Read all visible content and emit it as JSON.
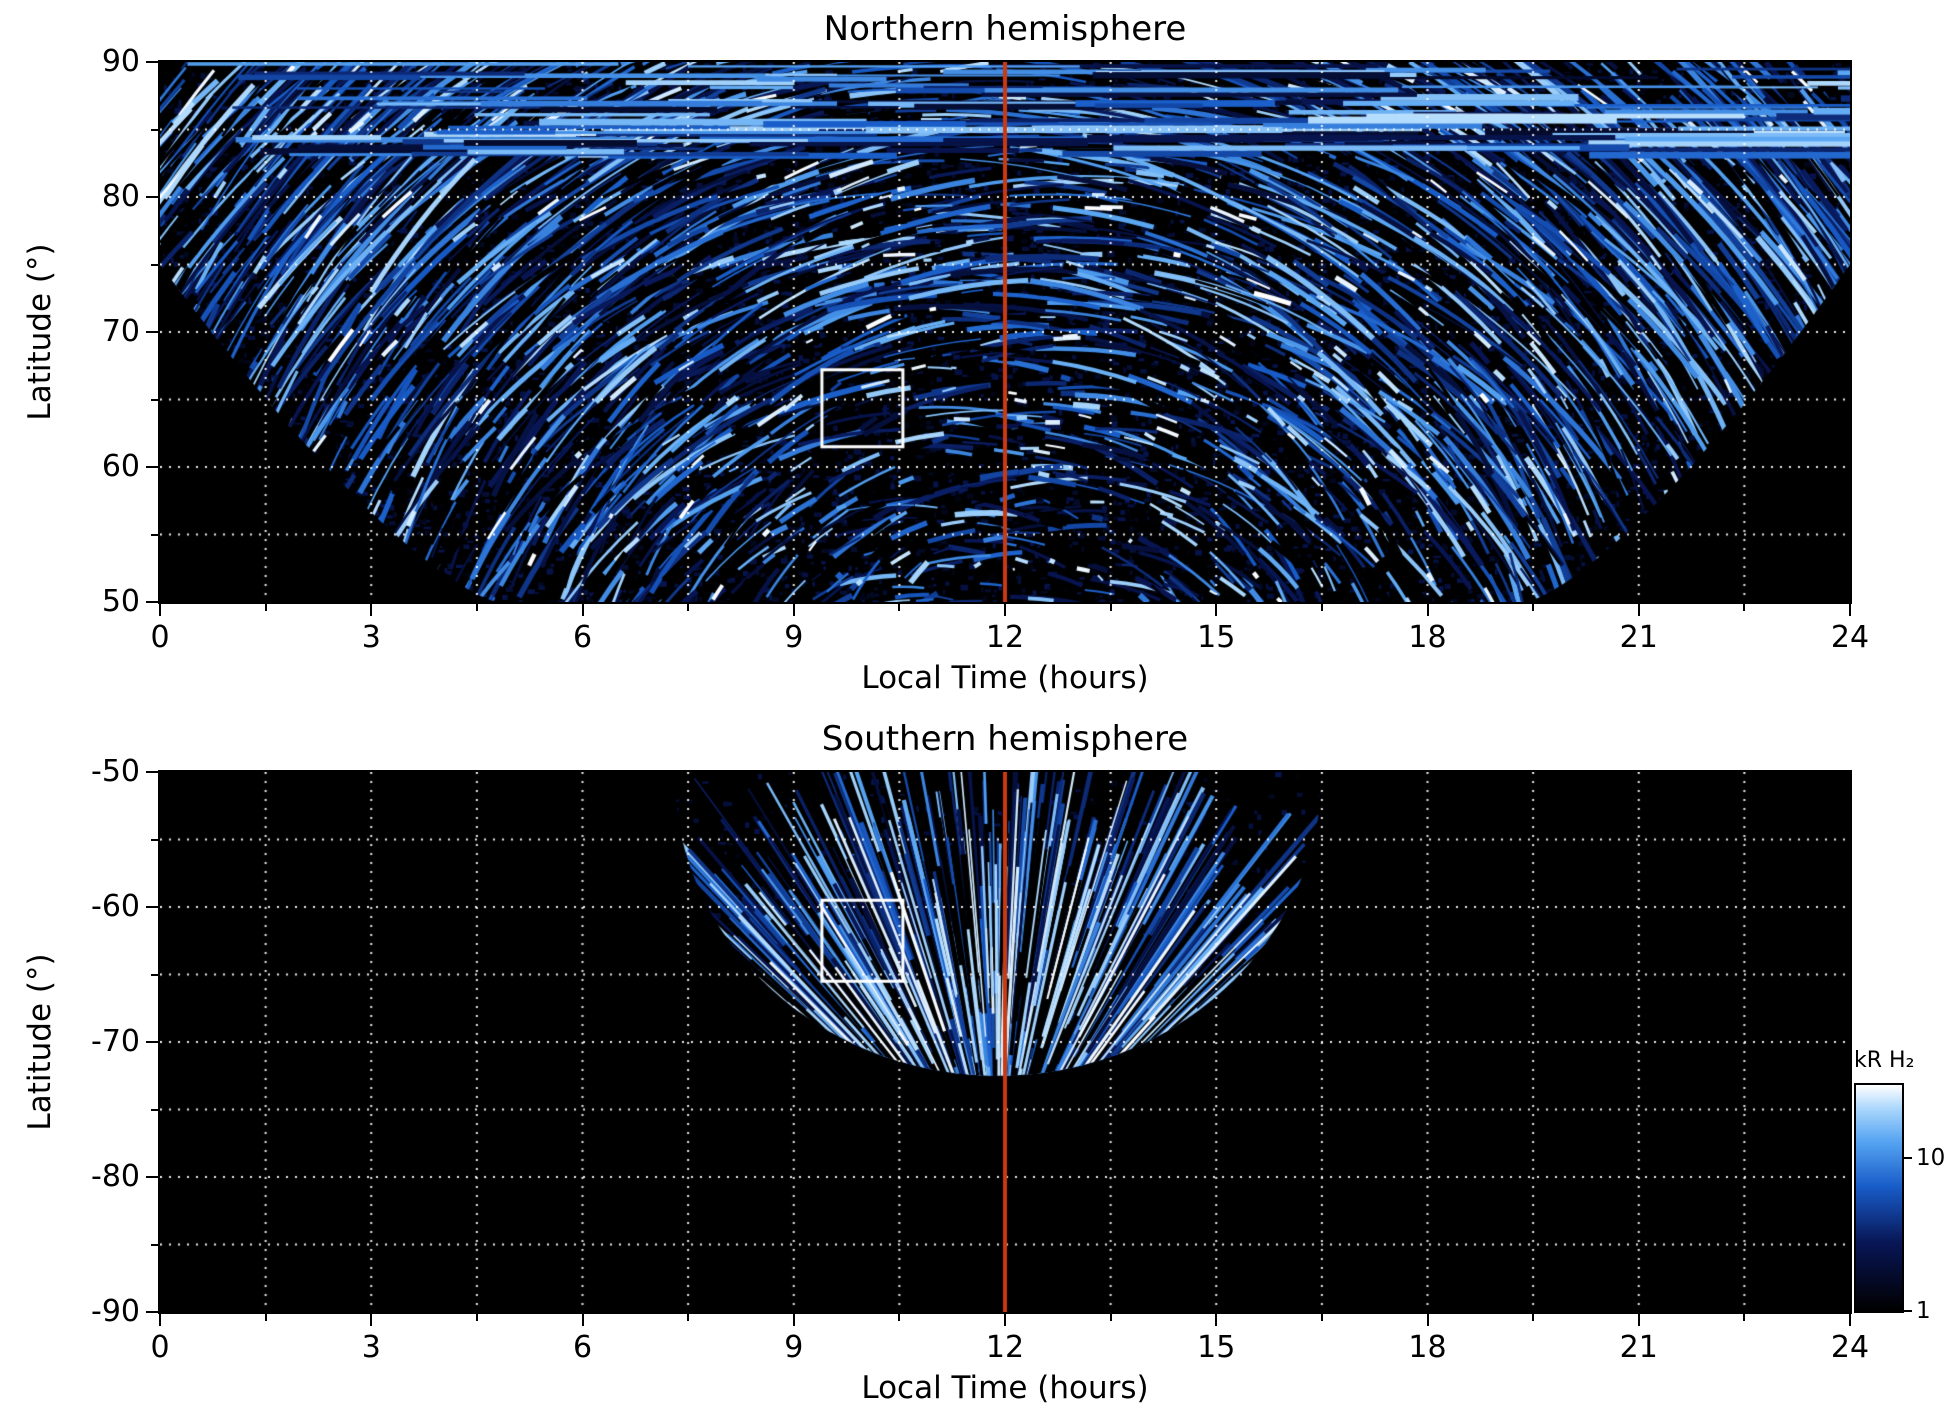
{
  "figure": {
    "background": "#ffffff"
  },
  "chart_data": [
    {
      "type": "heatmap",
      "title": "Northern hemisphere",
      "xlabel": "Local Time (hours)",
      "ylabel": "Latitude (°)",
      "xlim": [
        0,
        24
      ],
      "ylim": [
        50,
        90
      ],
      "x_major_ticks": [
        0,
        3,
        6,
        9,
        12,
        15,
        18,
        21,
        24
      ],
      "x_minor_step_hours": 1.5,
      "y_major_ticks": [
        90,
        80,
        70,
        60,
        50
      ],
      "y_minor_step_deg": 5,
      "grid": {
        "style": "dotted",
        "color": "#ffffff",
        "x_step_hours": 1.5,
        "y_step_deg": 5
      },
      "colormap": "black-blue-white auroral emission, log scale kR H2",
      "intensity_range_kR": [
        1,
        30
      ],
      "noon_meridian_line": {
        "x_hours": 12,
        "color": "#c93a12"
      },
      "roi_box": {
        "x0_hours": 9.4,
        "x1_hours": 10.55,
        "lat0": 61.5,
        "lat1": 67.2,
        "color": "#ffffff"
      },
      "coverage": {
        "description": "Observation swaths: full local-time coverage above ~75°, fan-shaped coverage down to 50° between ~4.8 h and ~19.4 h; black = no data",
        "full_coverage_above_lat": 75,
        "fan_left_edge_h": 4.8,
        "fan_right_edge_h": 19.4,
        "min_lat": 50
      }
    },
    {
      "type": "heatmap",
      "title": "Southern hemisphere",
      "xlabel": "Local Time (hours)",
      "ylabel": "Latitude (°)",
      "xlim": [
        0,
        24
      ],
      "ylim": [
        -90,
        -50
      ],
      "x_major_ticks": [
        0,
        3,
        6,
        9,
        12,
        15,
        18,
        21,
        24
      ],
      "x_minor_step_hours": 1.5,
      "y_major_ticks": [
        -50,
        -60,
        -70,
        -80,
        -90
      ],
      "y_minor_step_deg": 5,
      "grid": {
        "style": "dotted",
        "color": "#ffffff",
        "x_step_hours": 1.5,
        "y_step_deg": 5
      },
      "colormap": "black-blue-white auroral emission, log scale kR H2",
      "intensity_range_kR": [
        1,
        30
      ],
      "noon_meridian_line": {
        "x_hours": 12,
        "color": "#c93a12"
      },
      "roi_box": {
        "x0_hours": 9.4,
        "x1_hours": 10.55,
        "lat0": -65.5,
        "lat1": -59.5,
        "color": "#ffffff"
      },
      "coverage": {
        "description": "Fan-shaped coverage centred near local noon, from -50° down to about -72.5°; black = no data",
        "fan_center_h": 11.9,
        "fan_half_width_h": 4.6,
        "top_lat": -50,
        "deepest_lat": -72.5
      }
    }
  ],
  "colorbar": {
    "label": "kR H₂",
    "scale": "log",
    "range": [
      1,
      30
    ],
    "tick_values": [
      10,
      1
    ],
    "tick_labels": [
      "10",
      "1"
    ],
    "colors": {
      "low": "#000000",
      "mid": "#2268cc",
      "high": "#ffffff"
    }
  }
}
